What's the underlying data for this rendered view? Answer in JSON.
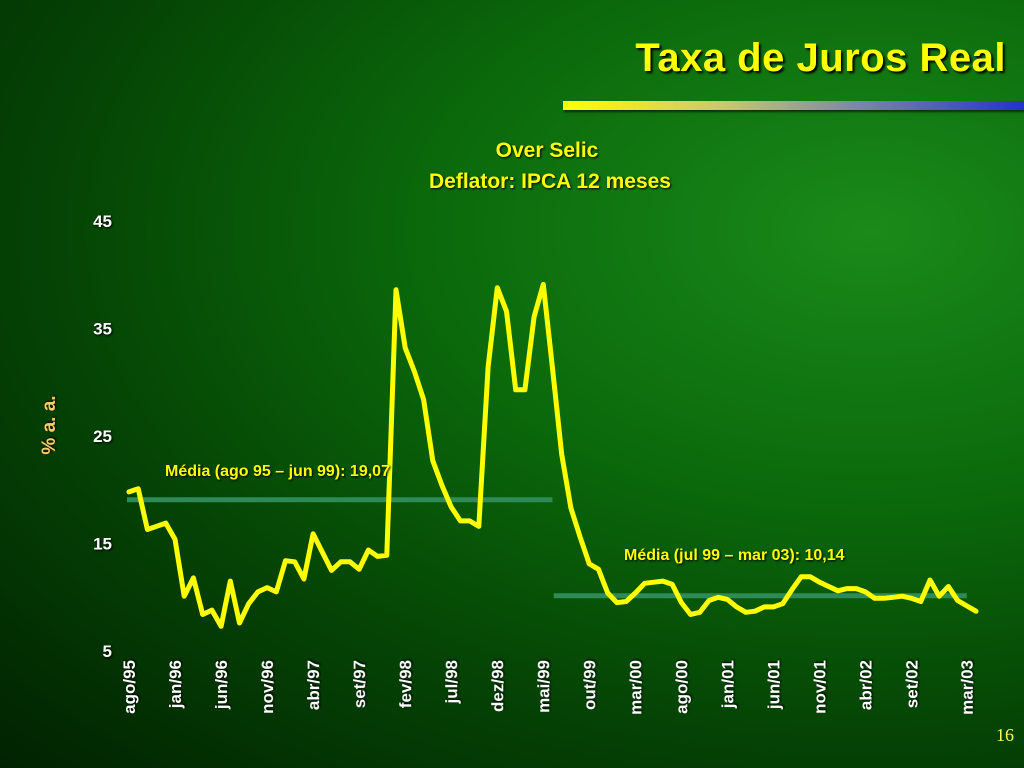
{
  "slide": {
    "title": "Taxa de Juros Real",
    "page_number": "16"
  },
  "colors": {
    "title": "#ffff00",
    "series": "#ffff00",
    "mean_line": "#2e8b57",
    "tick_text": "#ffffff",
    "ylabel": "#ffcc66"
  },
  "chart_data": {
    "type": "line",
    "subtitle_lines": [
      "Over Selic",
      "Deflator: IPCA 12 meses"
    ],
    "ylabel": "% a. a.",
    "xlabel": "",
    "ylim": [
      5,
      45
    ],
    "yticks": [
      5,
      15,
      25,
      35,
      45
    ],
    "grid": false,
    "x_tick_labels": [
      "ago/95",
      "jan/96",
      "jun/96",
      "nov/96",
      "abr/97",
      "set/97",
      "fev/98",
      "jul/98",
      "dez/98",
      "mai/99",
      "out/99",
      "mar/00",
      "ago/00",
      "jan/01",
      "jun/01",
      "nov/01",
      "abr/02",
      "set/02",
      "mar/03"
    ],
    "x_tick_month_index": [
      0,
      5,
      10,
      15,
      20,
      25,
      30,
      35,
      40,
      45,
      50,
      55,
      60,
      65,
      70,
      75,
      80,
      85,
      91
    ],
    "x_start": "ago/95",
    "x_end": "mar/03",
    "series": [
      {
        "values": [
          19.8,
          20.1,
          16.3,
          16.6,
          16.9,
          15.4,
          10.1,
          11.8,
          8.4,
          8.8,
          7.3,
          11.5,
          7.6,
          9.4,
          10.5,
          10.9,
          10.5,
          13.4,
          13.3,
          11.7,
          15.9,
          14.2,
          12.5,
          13.3,
          13.3,
          12.6,
          14.4,
          13.8,
          13.9,
          38.6,
          33.2,
          31.0,
          28.4,
          22.7,
          20.4,
          18.4,
          17.1,
          17.1,
          16.6,
          31.4,
          38.8,
          36.6,
          29.3,
          29.3,
          36.1,
          39.1,
          31.3,
          23.3,
          18.3,
          15.6,
          13.1,
          12.6,
          10.4,
          9.5,
          9.6,
          10.4,
          11.3,
          11.4,
          11.5,
          11.2,
          9.5,
          8.4,
          8.6,
          9.7,
          10.0,
          9.8,
          9.1,
          8.6,
          8.7,
          9.1,
          9.1,
          9.4,
          10.7,
          11.9,
          11.9,
          11.4,
          11.0,
          10.6,
          10.8,
          10.8,
          10.5,
          9.9,
          9.9,
          10.0,
          10.1,
          9.9,
          9.6,
          11.6,
          10.1,
          11.0,
          9.7,
          9.2,
          8.7
        ]
      }
    ],
    "mean_lines": [
      {
        "label": "Média (ago 95 – jun 99): 19,07",
        "value": 19.07,
        "from": "ago/95",
        "to": "jun/99"
      },
      {
        "label": "Média (jul 99 – mar 03): 10,14",
        "value": 10.14,
        "from": "jul/99",
        "to": "mar/03"
      }
    ]
  }
}
